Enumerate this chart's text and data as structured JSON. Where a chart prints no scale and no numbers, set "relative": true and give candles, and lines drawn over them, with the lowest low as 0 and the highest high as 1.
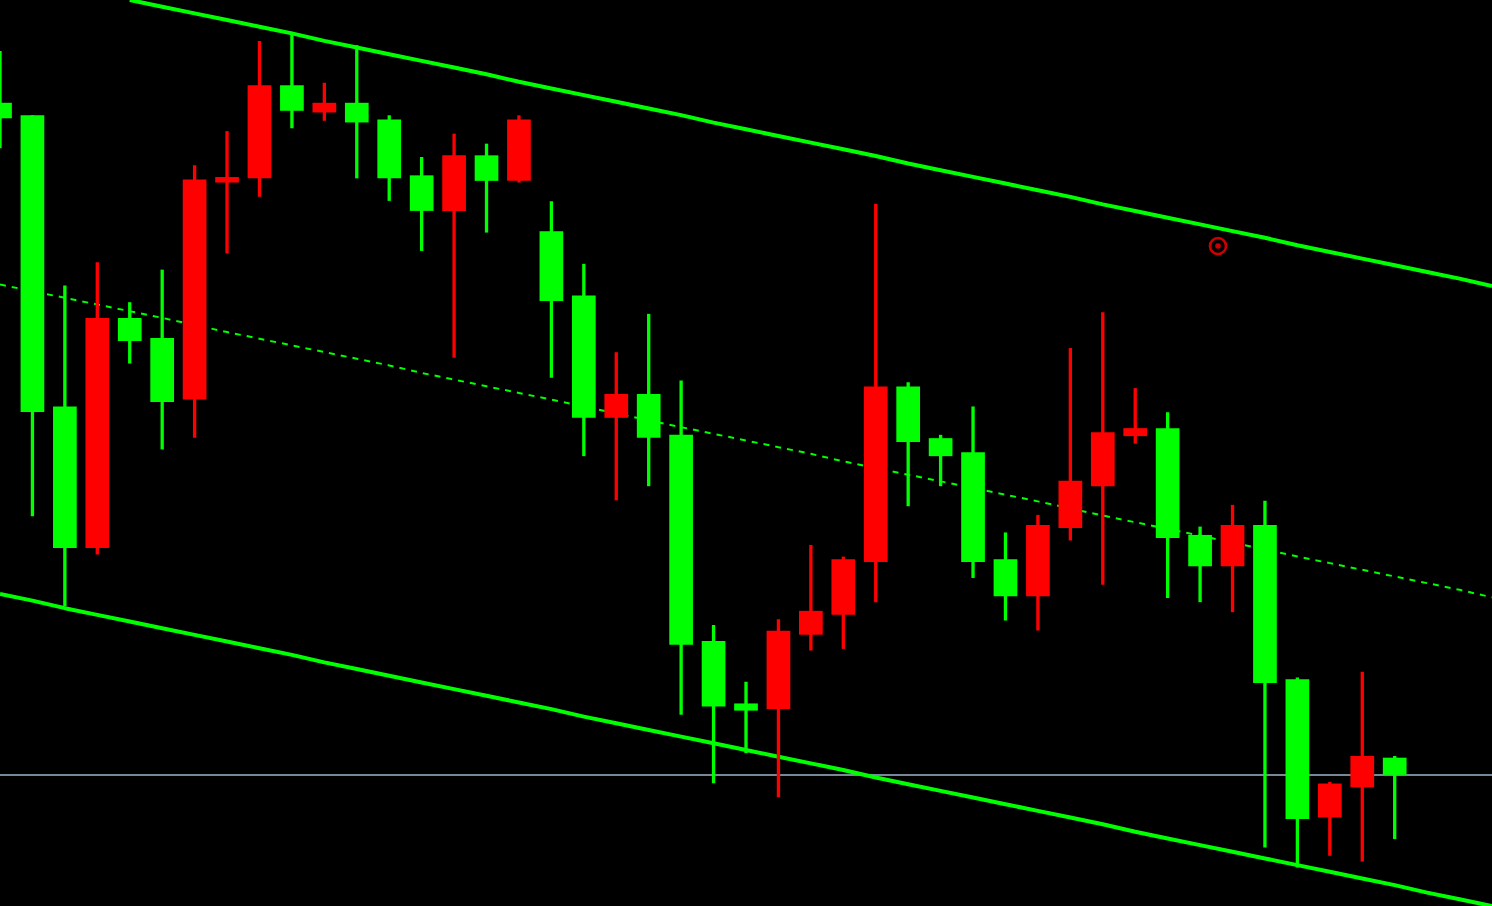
{
  "chart_data": {
    "type": "candlestick",
    "relative": true,
    "categories": [
      null,
      null,
      null,
      null,
      null,
      null,
      null,
      null,
      null,
      null,
      null,
      null,
      null,
      null,
      null,
      null,
      null,
      null,
      null,
      null,
      null,
      null,
      null,
      null,
      null,
      null,
      null,
      null,
      null,
      null,
      null,
      null,
      null,
      null,
      null,
      null,
      null,
      null,
      null,
      null,
      null,
      null,
      null,
      null,
      null,
      null,
      null
    ],
    "ohlc": [
      [
        0.915,
        0.977,
        0.862,
        0.898
      ],
      [
        0.9,
        0.9,
        0.421,
        0.546
      ],
      [
        0.551,
        0.696,
        0.313,
        0.383
      ],
      [
        0.383,
        0.724,
        0.375,
        0.657
      ],
      [
        0.657,
        0.676,
        0.604,
        0.631
      ],
      [
        0.633,
        0.715,
        0.501,
        0.558
      ],
      [
        0.561,
        0.84,
        0.515,
        0.823
      ],
      [
        0.821,
        0.881,
        0.736,
        0.826
      ],
      [
        0.826,
        0.989,
        0.804,
        0.936
      ],
      [
        0.936,
        1.0,
        0.886,
        0.907
      ],
      [
        0.905,
        0.939,
        0.895,
        0.915
      ],
      [
        0.915,
        0.984,
        0.826,
        0.893
      ],
      [
        0.895,
        0.9,
        0.799,
        0.826
      ],
      [
        0.828,
        0.85,
        0.739,
        0.787
      ],
      [
        0.787,
        0.878,
        0.611,
        0.852
      ],
      [
        0.852,
        0.866,
        0.761,
        0.823
      ],
      [
        0.823,
        0.9,
        0.821,
        0.895
      ],
      [
        0.761,
        0.797,
        0.587,
        0.679
      ],
      [
        0.684,
        0.722,
        0.493,
        0.539
      ],
      [
        0.539,
        0.616,
        0.44,
        0.566
      ],
      [
        0.566,
        0.662,
        0.457,
        0.515
      ],
      [
        0.517,
        0.582,
        0.183,
        0.267
      ],
      [
        0.27,
        0.289,
        0.101,
        0.193
      ],
      [
        0.195,
        0.221,
        0.137,
        0.188
      ],
      [
        0.19,
        0.296,
        0.084,
        0.282
      ],
      [
        0.279,
        0.385,
        0.26,
        0.306
      ],
      [
        0.303,
        0.371,
        0.262,
        0.368
      ],
      [
        0.366,
        0.794,
        0.318,
        0.575
      ],
      [
        0.575,
        0.58,
        0.433,
        0.51
      ],
      [
        0.513,
        0.517,
        0.457,
        0.493
      ],
      [
        0.496,
        0.551,
        0.347,
        0.366
      ],
      [
        0.368,
        0.4,
        0.296,
        0.325
      ],
      [
        0.325,
        0.421,
        0.284,
        0.409
      ],
      [
        0.407,
        0.621,
        0.392,
        0.462
      ],
      [
        0.457,
        0.664,
        0.339,
        0.52
      ],
      [
        0.517,
        0.573,
        0.508,
        0.525
      ],
      [
        0.525,
        0.544,
        0.323,
        0.395
      ],
      [
        0.397,
        0.407,
        0.318,
        0.361
      ],
      [
        0.361,
        0.433,
        0.306,
        0.409
      ],
      [
        0.409,
        0.438,
        0.024,
        0.221
      ],
      [
        0.224,
        0.226,
        0.0,
        0.058
      ],
      [
        0.06,
        0.101,
        0.014,
        0.099
      ],
      [
        0.096,
        0.233,
        0.007,
        0.132
      ],
      [
        0.13,
        0.132,
        0.034,
        0.111
      ],
      null,
      null,
      null
    ],
    "colors": [
      "#00ff00",
      "#00ff00",
      "#00ff00",
      "#ff0000",
      "#00ff00",
      "#00ff00",
      "#ff0000",
      "#ff0000",
      "#ff0000",
      "#00ff00",
      "#ff0000",
      "#00ff00",
      "#00ff00",
      "#00ff00",
      "#ff0000",
      "#00ff00",
      "#ff0000",
      "#00ff00",
      "#00ff00",
      "#ff0000",
      "#00ff00",
      "#00ff00",
      "#00ff00",
      "#00ff00",
      "#ff0000",
      "#ff0000",
      "#ff0000",
      "#ff0000",
      "#00ff00",
      "#00ff00",
      "#00ff00",
      "#00ff00",
      "#ff0000",
      "#ff0000",
      "#ff0000",
      "#ff0000",
      "#00ff00",
      "#00ff00",
      "#ff0000",
      "#00ff00",
      "#00ff00",
      "#ff0000",
      "#ff0000",
      "#00ff00",
      null,
      null,
      null
    ],
    "series": [
      {
        "type": "line",
        "color": "#00ff00",
        "line_style": "solid",
        "values": [
          null,
          null,
          null,
          null,
          1.039,
          1.031,
          1.023,
          1.015,
          1.007,
          0.999,
          0.99,
          0.982,
          0.974,
          0.966,
          0.958,
          0.95,
          0.941,
          0.933,
          0.925,
          0.917,
          0.909,
          0.901,
          0.892,
          0.884,
          0.876,
          0.868,
          0.86,
          0.852,
          0.843,
          0.835,
          0.827,
          0.819,
          0.811,
          0.803,
          0.794,
          0.786,
          0.778,
          0.77,
          0.762,
          0.754,
          0.745,
          0.737,
          0.729,
          0.721,
          0.713,
          0.705,
          0.696
        ]
      },
      {
        "type": "line",
        "color": "#00ff00",
        "line_style": "dashed",
        "values": [
          0.698,
          null,
          0.682,
          0.674,
          0.666,
          0.658,
          null,
          0.641,
          0.633,
          0.625,
          0.617,
          0.609,
          0.601,
          0.592,
          0.584,
          0.576,
          0.568,
          0.56,
          null,
          null,
          null,
          0.527,
          0.519,
          0.511,
          0.503,
          0.495,
          0.486,
          null,
          0.47,
          0.462,
          null,
          0.446,
          0.438,
          null,
          0.421,
          0.413,
          null,
          0.397,
          null,
          null,
          0.372,
          0.364,
          0.356,
          0.348,
          0.34,
          0.332,
          0.323
        ]
      },
      {
        "type": "line",
        "color": "#00ff00",
        "line_style": "solid",
        "values": [
          0.327,
          0.319,
          0.31,
          0.302,
          0.294,
          0.286,
          0.278,
          0.27,
          0.262,
          0.254,
          0.245,
          0.237,
          0.229,
          0.221,
          0.213,
          0.205,
          0.197,
          0.189,
          0.18,
          0.172,
          0.164,
          0.156,
          0.148,
          0.14,
          0.132,
          0.124,
          0.116,
          0.107,
          0.099,
          0.091,
          0.083,
          0.075,
          0.067,
          0.059,
          0.051,
          0.042,
          0.034,
          0.026,
          0.018,
          0.01,
          0.002,
          -0.006,
          -0.014,
          -0.022,
          -0.031,
          -0.039,
          -0.047
        ]
      }
    ],
    "ref_lines": [
      {
        "axis": "y",
        "value": 0.112,
        "color": "#778899"
      }
    ],
    "tick_labels": false,
    "grid": false,
    "legend": false
  }
}
